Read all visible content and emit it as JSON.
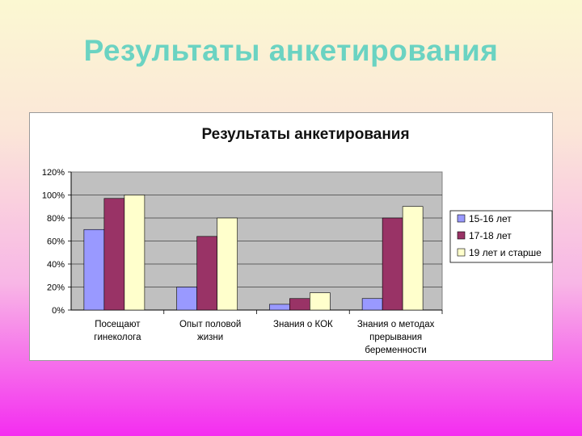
{
  "slide": {
    "title": "Результаты анкетирования"
  },
  "colors": {
    "series1": "#9999ff",
    "series2": "#993366",
    "series3": "#ffffcc",
    "plot_bg": "#c0c0c0"
  },
  "chart_data": {
    "type": "bar",
    "title": "Результаты анкетирования",
    "categories": [
      [
        "Посещают",
        "гинеколога"
      ],
      [
        "Опыт половой",
        "жизни"
      ],
      [
        "Знания о КОК"
      ],
      [
        "Знания о методах",
        "прерывания",
        "беременности"
      ]
    ],
    "series": [
      {
        "name": "15-16 лет",
        "values": [
          0.7,
          0.2,
          0.05,
          0.1
        ],
        "color": "#9999ff"
      },
      {
        "name": "17-18 лет",
        "values": [
          0.97,
          0.64,
          0.1,
          0.8
        ],
        "color": "#993366"
      },
      {
        "name": "19 лет и старше",
        "values": [
          1.0,
          0.8,
          0.15,
          0.9
        ],
        "color": "#ffffcc"
      }
    ],
    "ylim": [
      0,
      1.2
    ],
    "yticks": [
      "0%",
      "20%",
      "40%",
      "60%",
      "80%",
      "100%",
      "120%"
    ],
    "grid": true,
    "legend": "right"
  }
}
